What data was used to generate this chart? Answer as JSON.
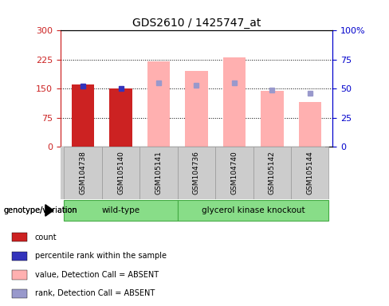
{
  "title": "GDS2610 / 1425747_at",
  "samples": [
    "GSM104738",
    "GSM105140",
    "GSM105141",
    "GSM104736",
    "GSM104740",
    "GSM105142",
    "GSM105144"
  ],
  "detection_calls": [
    "P",
    "P",
    "A",
    "A",
    "A",
    "A",
    "A"
  ],
  "count_values": [
    160,
    150,
    null,
    null,
    null,
    null,
    null
  ],
  "percentile_rank": [
    52,
    50,
    null,
    null,
    null,
    null,
    null
  ],
  "absent_value": [
    null,
    null,
    220,
    195,
    230,
    145,
    115
  ],
  "absent_rank": [
    null,
    null,
    55,
    53,
    55,
    49,
    46
  ],
  "left_ylim": [
    0,
    300
  ],
  "right_ylim": [
    0,
    100
  ],
  "left_yticks": [
    0,
    75,
    150,
    225,
    300
  ],
  "right_yticks": [
    0,
    25,
    50,
    75,
    100
  ],
  "right_yticklabels": [
    "0",
    "25",
    "50",
    "75",
    "100%"
  ],
  "left_color": "#CC2222",
  "right_color": "#0000CC",
  "bar_width": 0.6,
  "pink_bar_color": "#FFB0B0",
  "blue_square_color": "#3333BB",
  "lightblue_square_color": "#9999CC",
  "bg_color": "#CCCCCC",
  "plot_bg": "#FFFFFF",
  "genotype_label": "genotype/variation",
  "wt_color": "#88DD88",
  "ko_color": "#88DD88",
  "wt_label": "wild-type",
  "ko_label": "glycerol kinase knockout",
  "legend_items": [
    [
      "#CC2222",
      "count"
    ],
    [
      "#3333BB",
      "percentile rank within the sample"
    ],
    [
      "#FFB0B0",
      "value, Detection Call = ABSENT"
    ],
    [
      "#9999CC",
      "rank, Detection Call = ABSENT"
    ]
  ]
}
